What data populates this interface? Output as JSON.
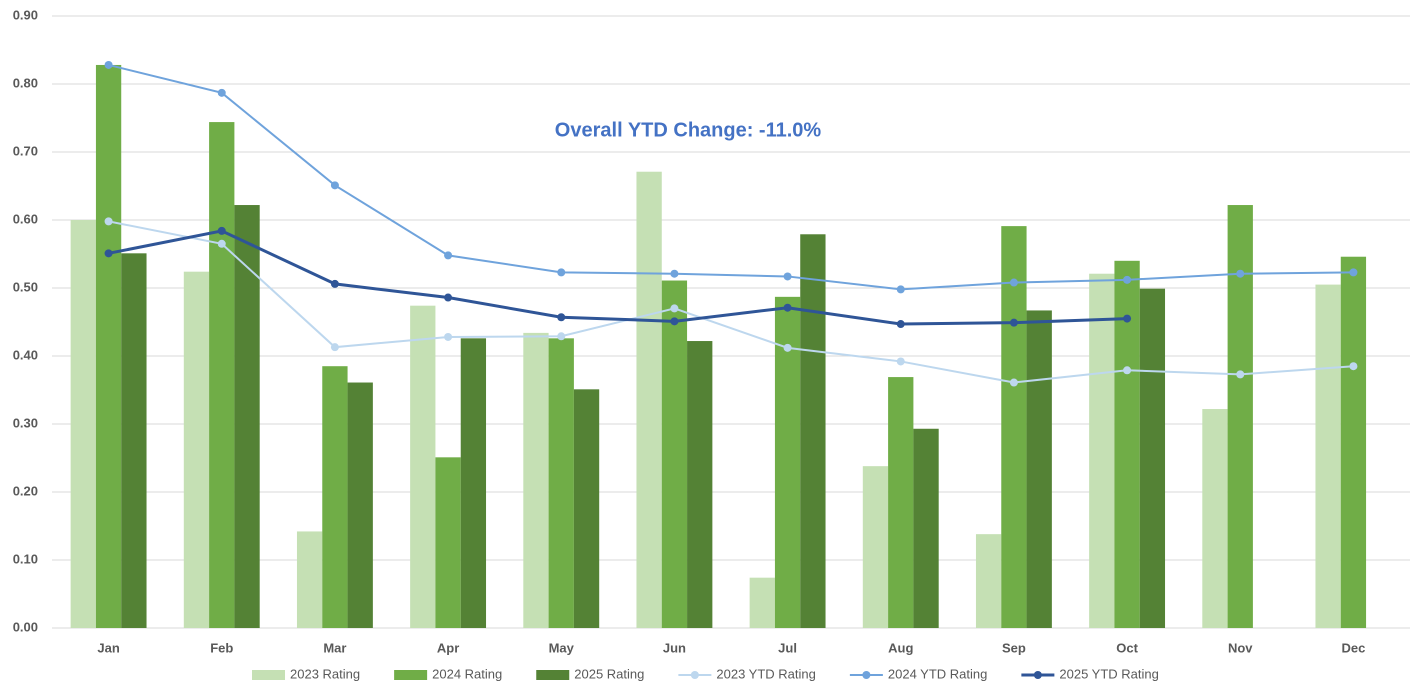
{
  "chart_data": {
    "type": "combo",
    "annotation": "Overall YTD Change: -11.0%",
    "categories": [
      "Jan",
      "Feb",
      "Mar",
      "Apr",
      "May",
      "Jun",
      "Jul",
      "Aug",
      "Sep",
      "Oct",
      "Nov",
      "Dec"
    ],
    "ylim": [
      0,
      0.9
    ],
    "yticks": [
      {
        "value": 0,
        "label": "0.00"
      },
      {
        "value": 0.1,
        "label": "0.10"
      },
      {
        "value": 0.2,
        "label": "0.20"
      },
      {
        "value": 0.3,
        "label": "0.30"
      },
      {
        "value": 0.4,
        "label": "0.40"
      },
      {
        "value": 0.5,
        "label": "0.50"
      },
      {
        "value": 0.6,
        "label": "0.60"
      },
      {
        "value": 0.7,
        "label": "0.70"
      },
      {
        "value": 0.8,
        "label": "0.80"
      },
      {
        "value": 0.9,
        "label": "0.90"
      }
    ],
    "grid": true,
    "legend": "bottom",
    "series": [
      {
        "name": "2023 Rating",
        "type": "bar",
        "color": "#c5e0b4",
        "values": [
          0.6,
          0.524,
          0.142,
          0.474,
          0.434,
          0.671,
          0.074,
          0.238,
          0.138,
          0.521,
          0.322,
          0.505
        ]
      },
      {
        "name": "2024 Rating",
        "type": "bar",
        "color": "#70ad47",
        "values": [
          0.828,
          0.744,
          0.385,
          0.251,
          0.426,
          0.511,
          0.487,
          0.369,
          0.591,
          0.54,
          0.622,
          0.546
        ]
      },
      {
        "name": "2025 Rating",
        "type": "bar",
        "color": "#548235",
        "values": [
          0.551,
          0.622,
          0.361,
          0.426,
          0.351,
          0.422,
          0.579,
          0.293,
          0.467,
          0.499,
          null,
          null
        ]
      },
      {
        "name": "2023 YTD Rating",
        "type": "line",
        "color": "#bdd7ee",
        "values": [
          0.598,
          0.565,
          0.413,
          0.428,
          0.429,
          0.47,
          0.412,
          0.392,
          0.361,
          0.379,
          0.373,
          0.385
        ]
      },
      {
        "name": "2024 YTD Rating",
        "type": "line",
        "color": "#6fa3dc",
        "values": [
          0.828,
          0.787,
          0.651,
          0.548,
          0.523,
          0.521,
          0.517,
          0.498,
          0.508,
          0.512,
          0.521,
          0.523
        ]
      },
      {
        "name": "2025 YTD Rating",
        "type": "line",
        "color": "#2f5597",
        "values": [
          0.551,
          0.584,
          0.506,
          0.486,
          0.457,
          0.451,
          0.471,
          0.447,
          0.449,
          0.455,
          null,
          null
        ]
      }
    ]
  }
}
